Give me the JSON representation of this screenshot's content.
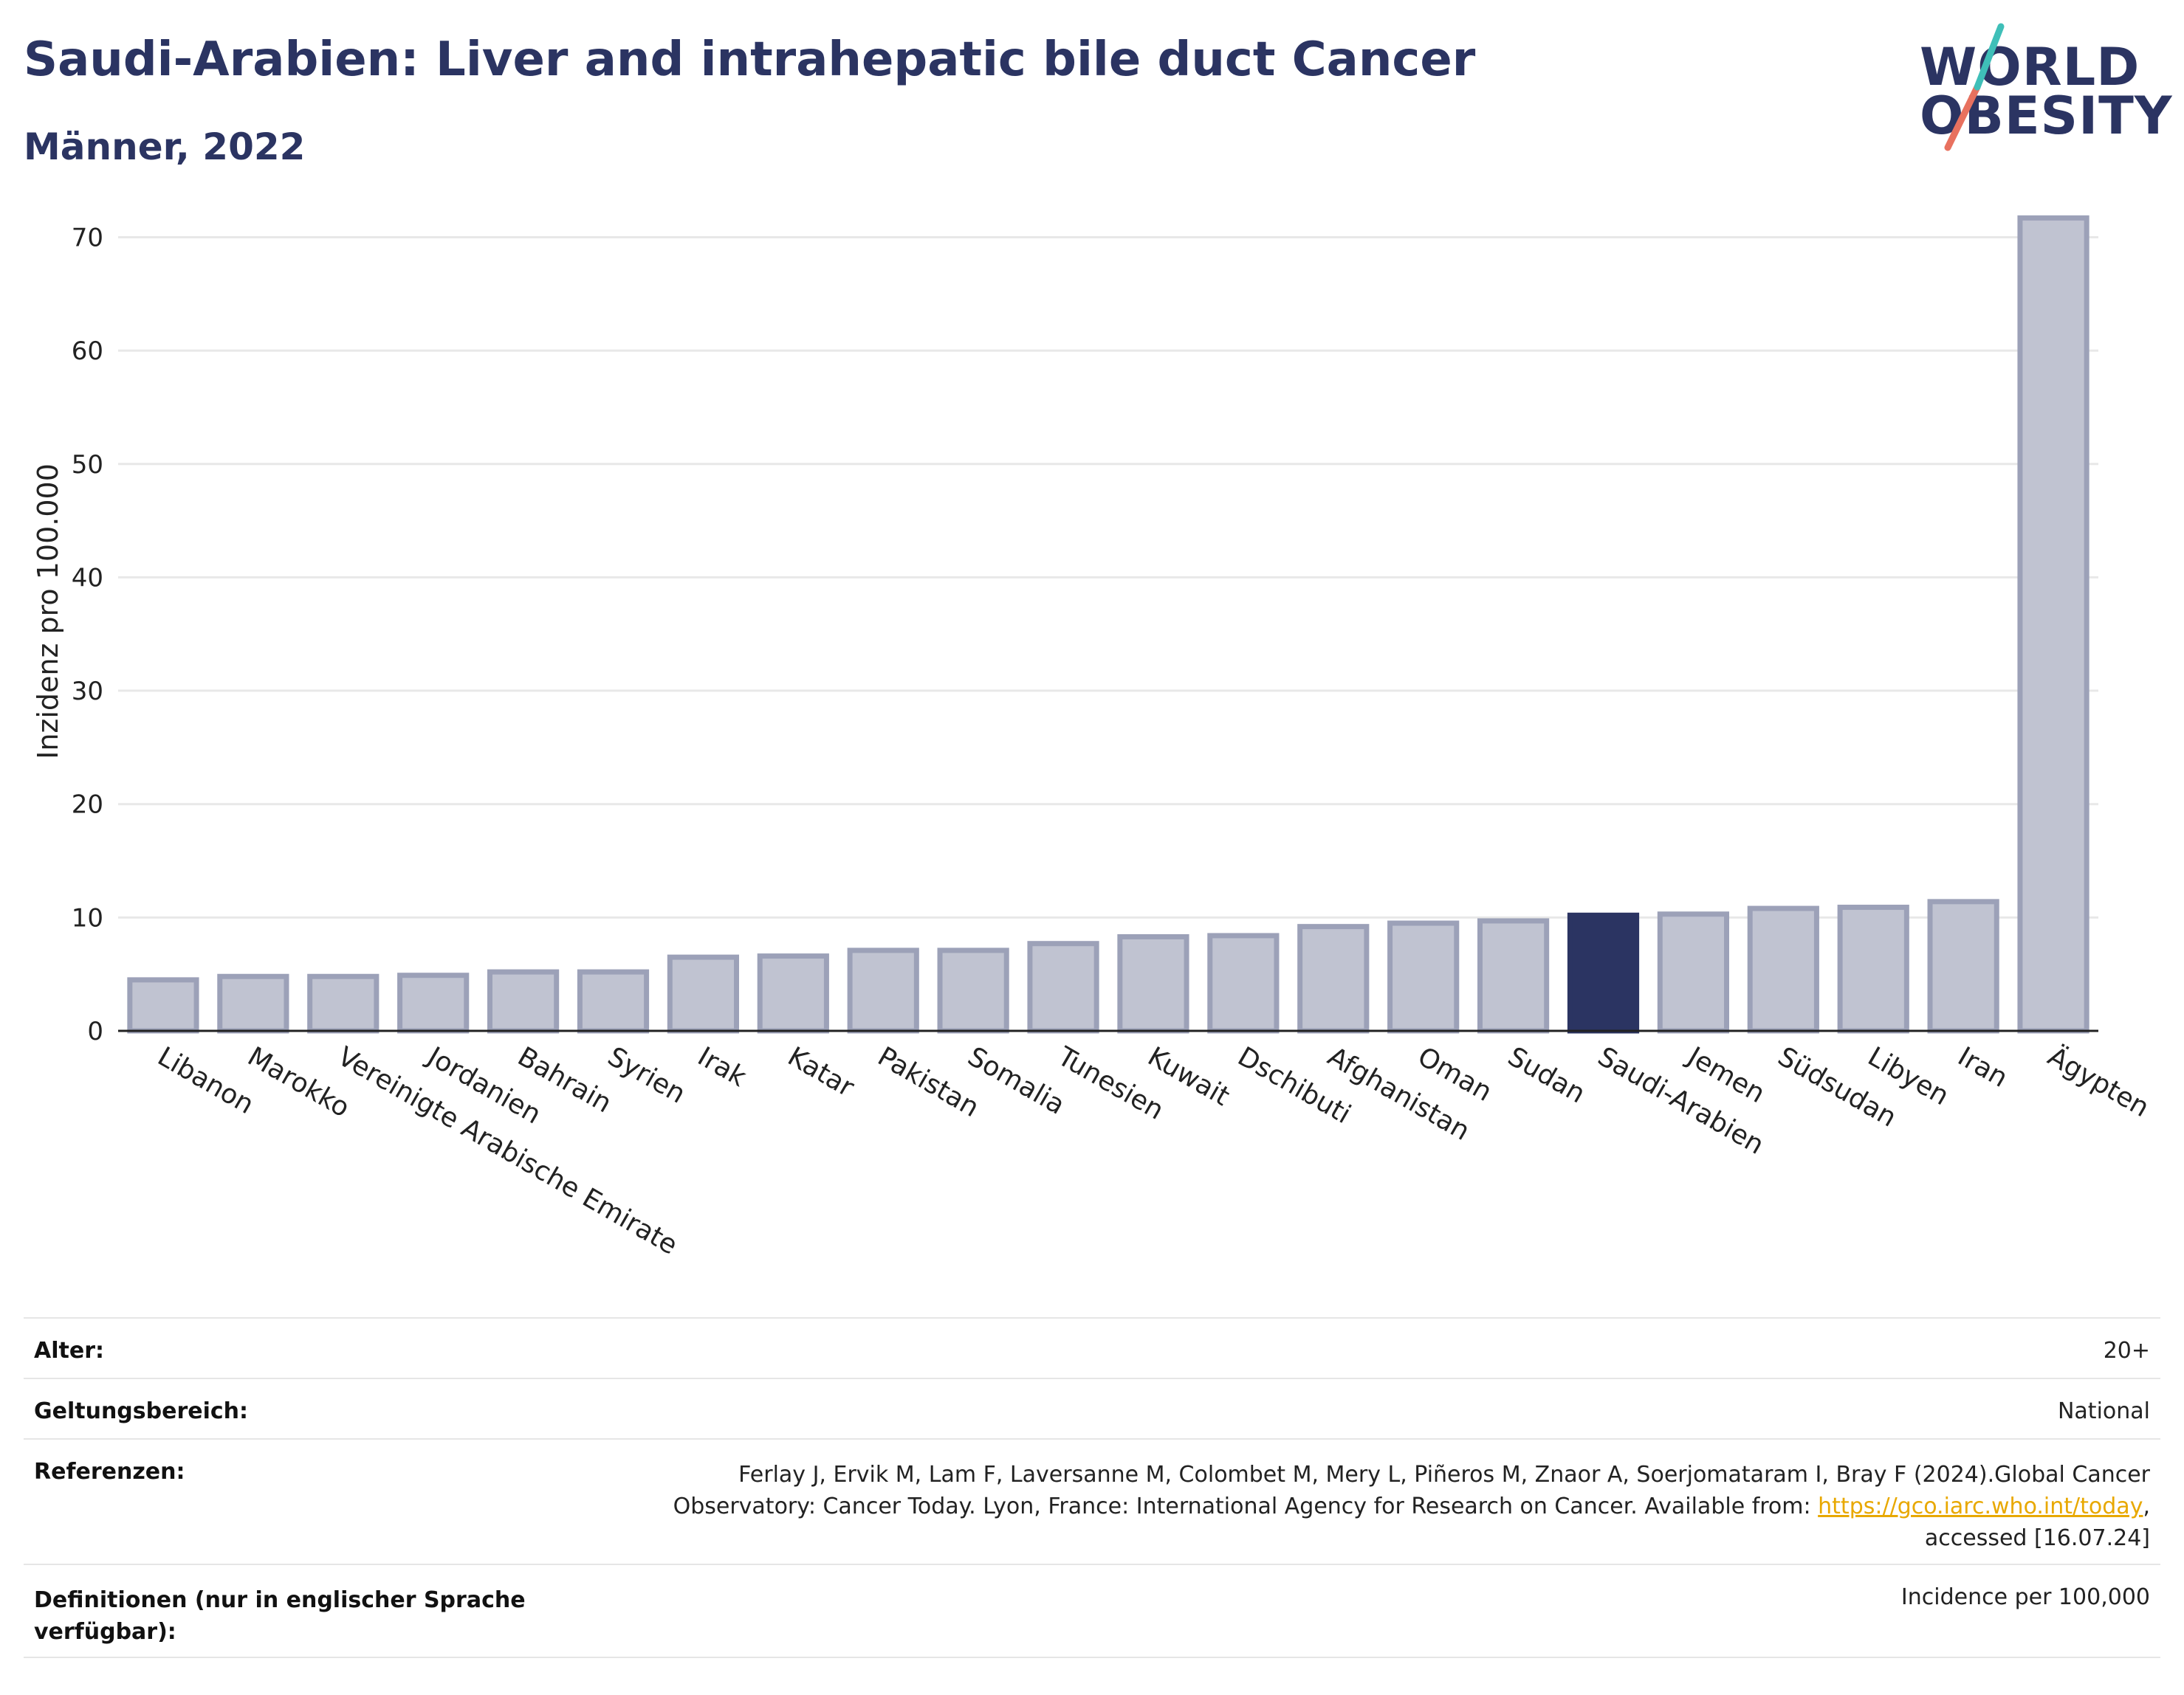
{
  "title": "Saudi-Arabien: Liver and intrahepatic bile duct Cancer",
  "subtitle": "Männer, 2022",
  "logo": {
    "line1": "WORLD",
    "line2": "OBESITY"
  },
  "colors": {
    "highlight": "#2b3462",
    "bar": "#c0c3d1",
    "bar_edge": "#9ca1b8",
    "grid": "#e8e8e8",
    "link": "#e8a800"
  },
  "chart_data": {
    "type": "bar",
    "ylabel": "Inzidenz pro 100.000",
    "ylim": [
      0,
      74
    ],
    "yticks": [
      0,
      10,
      20,
      30,
      40,
      50,
      60,
      70
    ],
    "grid": true,
    "highlight": "Saudi-Arabien",
    "categories": [
      "Libanon",
      "Marokko",
      "Vereinigte Arabische Emirate",
      "Jordanien",
      "Bahrain",
      "Syrien",
      "Irak",
      "Katar",
      "Pakistan",
      "Somalia",
      "Tunesien",
      "Kuwait",
      "Dschibuti",
      "Afghanistan",
      "Oman",
      "Sudan",
      "Saudi-Arabien",
      "Jemen",
      "Südsudan",
      "Libyen",
      "Iran",
      "Ägypten"
    ],
    "values": [
      4.5,
      4.8,
      4.8,
      4.9,
      5.2,
      5.2,
      6.5,
      6.6,
      7.1,
      7.1,
      7.7,
      8.3,
      8.4,
      9.2,
      9.5,
      9.7,
      10.2,
      10.3,
      10.8,
      10.9,
      11.4,
      71.7
    ]
  },
  "meta": {
    "age_label": "Alter:",
    "age_value": "20+",
    "scope_label": "Geltungsbereich:",
    "scope_value": "National",
    "ref_label": "Referenzen:",
    "ref_line1": "Ferlay J, Ervik M, Lam F, Laversanne M, Colombet M, Mery L, Piñeros M, Znaor A, Soerjomataram I, Bray F (2024).Global Cancer",
    "ref_line2": "Observatory: Cancer Today. Lyon, France: International Agency for Research on Cancer. Available from:",
    "ref_link": "https://gco.iarc.who.int/today",
    "ref_line2_end": ",",
    "ref_line3": "accessed [16.07.24]",
    "def_label_line1": "Definitionen (nur in englischer Sprache",
    "def_label_line2": "verfügbar):",
    "def_value": "Incidence per 100,000"
  }
}
